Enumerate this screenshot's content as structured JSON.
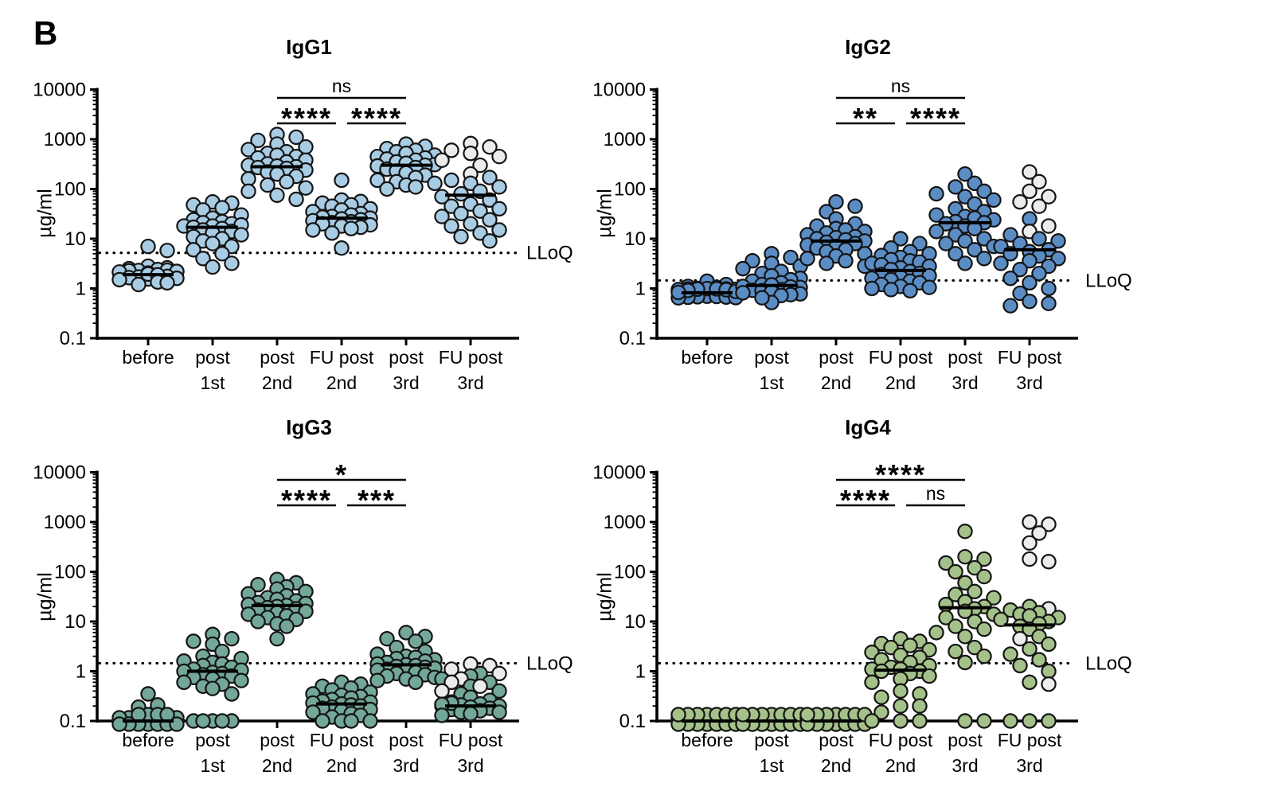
{
  "figure_label": "B",
  "lloq_label": "LLoQ",
  "ylabel": "µg/ml",
  "y_ticks": [
    "10000",
    "1000",
    "100",
    "10",
    "1",
    "0.1"
  ],
  "x_categories": [
    [
      "before",
      ""
    ],
    [
      "post",
      "1st"
    ],
    [
      "post",
      "2nd"
    ],
    [
      "FU post",
      "2nd"
    ],
    [
      "post",
      "3rd"
    ],
    [
      "FU post",
      "3rd"
    ]
  ],
  "colors": {
    "igg1": "#a8cce3",
    "igg2": "#5b8dc5",
    "igg3": "#73a79a",
    "igg4": "#a4c189",
    "open": "#ececec",
    "ink": "#000000"
  },
  "chart_data": [
    {
      "type": "scatter",
      "title": "IgG1",
      "ylabel": "µg/ml",
      "ylim": [
        0.1,
        10000
      ],
      "lloq": 5.2,
      "color_key": "igg1",
      "significance": [
        {
          "from": 2,
          "to": 4,
          "label": "ns",
          "row": 0
        },
        {
          "from": 2,
          "to": 3,
          "label": "****",
          "row": 1
        },
        {
          "from": 3,
          "to": 4,
          "label": "****",
          "row": 1
        }
      ],
      "groups": [
        {
          "category": "before",
          "median": 1.9,
          "values": [
            1.2,
            1.3,
            1.35,
            1.4,
            1.45,
            1.5,
            1.55,
            1.6,
            1.65,
            1.7,
            1.75,
            1.8,
            1.85,
            1.9,
            1.95,
            2.0,
            2.05,
            2.1,
            2.2,
            2.3,
            2.4,
            2.5,
            2.6,
            2.8,
            5.8,
            7.0
          ],
          "open_values": []
        },
        {
          "category": "post 1st",
          "median": 17,
          "values": [
            2.7,
            3.2,
            4,
            5,
            6,
            7,
            8,
            9,
            10,
            11,
            12,
            13,
            14,
            15,
            16,
            17,
            18,
            18,
            19,
            20,
            21,
            22,
            24,
            26,
            30,
            38,
            42,
            48,
            52,
            55
          ],
          "open_values": []
        },
        {
          "category": "post 2nd",
          "median": 280,
          "values": [
            62,
            75,
            90,
            105,
            120,
            140,
            160,
            180,
            200,
            220,
            240,
            260,
            270,
            280,
            290,
            300,
            320,
            350,
            380,
            420,
            450,
            480,
            520,
            560,
            620,
            700,
            800,
            950,
            1100,
            1250
          ],
          "open_values": []
        },
        {
          "category": "FU post 2nd",
          "median": 26,
          "values": [
            6.5,
            13,
            15,
            16,
            17,
            18,
            19,
            20,
            21,
            22,
            23,
            24,
            25,
            26,
            27,
            28,
            30,
            32,
            35,
            38,
            40,
            45,
            48,
            52,
            56,
            60,
            150
          ],
          "open_values": []
        },
        {
          "category": "post 3rd",
          "median": 300,
          "values": [
            100,
            110,
            120,
            130,
            140,
            150,
            170,
            190,
            210,
            230,
            250,
            270,
            290,
            300,
            310,
            330,
            350,
            380,
            400,
            420,
            450,
            480,
            520,
            560,
            600,
            650,
            720,
            800
          ],
          "open_values": []
        },
        {
          "category": "FU post 3rd",
          "median": 75,
          "values": [
            9,
            11,
            13,
            15,
            18,
            20,
            24,
            28,
            32,
            36,
            40,
            45,
            50,
            60,
            70,
            80,
            90,
            110,
            130,
            150,
            170
          ],
          "open_values": [
            200,
            300,
            380,
            450,
            520,
            600,
            700,
            820
          ]
        }
      ]
    },
    {
      "type": "scatter",
      "title": "IgG2",
      "ylabel": "µg/ml",
      "ylim": [
        0.1,
        10000
      ],
      "lloq": 1.45,
      "color_key": "igg2",
      "significance": [
        {
          "from": 2,
          "to": 4,
          "label": "ns",
          "row": 0
        },
        {
          "from": 2,
          "to": 3,
          "label": "**",
          "row": 1
        },
        {
          "from": 3,
          "to": 4,
          "label": "****",
          "row": 1
        }
      ],
      "groups": [
        {
          "category": "before",
          "median": 0.82,
          "values": [
            0.62,
            0.65,
            0.68,
            0.7,
            0.72,
            0.73,
            0.74,
            0.75,
            0.76,
            0.77,
            0.78,
            0.79,
            0.8,
            0.81,
            0.82,
            0.83,
            0.84,
            0.85,
            0.86,
            0.88,
            0.9,
            0.92,
            0.95,
            1.0,
            1.05,
            1.1,
            1.2,
            1.4
          ],
          "open_values": []
        },
        {
          "category": "post 1st",
          "median": 1.15,
          "values": [
            0.65,
            0.7,
            0.72,
            0.75,
            0.78,
            0.8,
            0.82,
            0.85,
            0.88,
            0.9,
            0.92,
            0.95,
            1.0,
            1.05,
            1.1,
            1.15,
            1.2,
            1.3,
            1.4,
            1.5,
            1.6,
            1.8,
            2.0,
            2.2,
            2.5,
            2.8,
            3.2,
            3.6,
            4.2,
            5.0
          ],
          "open_values": []
        },
        {
          "category": "post 2nd",
          "median": 9,
          "values": [
            2.8,
            3.2,
            3.6,
            4.0,
            4.5,
            5.0,
            5.5,
            6.0,
            6.5,
            7.0,
            7.5,
            8.0,
            8.5,
            9.0,
            9.5,
            10,
            10.5,
            11,
            12,
            13,
            14,
            15,
            16,
            18,
            20,
            25,
            35,
            45,
            55
          ],
          "open_values": []
        },
        {
          "category": "FU post 2nd",
          "median": 2.3,
          "values": [
            0.9,
            0.95,
            1.0,
            1.05,
            1.1,
            1.2,
            1.3,
            1.4,
            1.5,
            1.6,
            1.7,
            1.8,
            1.9,
            2.0,
            2.2,
            2.4,
            2.6,
            2.8,
            3.0,
            3.2,
            3.4,
            3.6,
            3.8,
            4.2,
            4.6,
            5.0,
            5.5,
            6.5,
            8.0,
            10
          ],
          "open_values": []
        },
        {
          "category": "post 3rd",
          "median": 21,
          "values": [
            3.2,
            4,
            5,
            6,
            7,
            8,
            9,
            10,
            12,
            14,
            16,
            18,
            20,
            21,
            22,
            24,
            26,
            28,
            30,
            35,
            40,
            50,
            60,
            70,
            80,
            90,
            110,
            130,
            200
          ],
          "open_values": []
        },
        {
          "category": "FU post 3rd",
          "median": 6,
          "values": [
            0.45,
            0.5,
            0.55,
            0.8,
            1.0,
            1.3,
            1.6,
            2.0,
            2.4,
            2.8,
            3.2,
            3.6,
            4.0,
            4.5,
            5.0,
            5.5,
            6.0,
            7.0,
            8.0,
            9.0,
            10,
            12,
            25
          ],
          "open_values": [
            14,
            18,
            45,
            55,
            70,
            90,
            140,
            220
          ]
        }
      ]
    },
    {
      "type": "scatter",
      "title": "IgG3",
      "ylabel": "µg/ml",
      "ylim": [
        0.1,
        10000
      ],
      "lloq": 1.45,
      "color_key": "igg3",
      "significance": [
        {
          "from": 2,
          "to": 4,
          "label": "*",
          "row": 0
        },
        {
          "from": 2,
          "to": 3,
          "label": "****",
          "row": 1
        },
        {
          "from": 3,
          "to": 4,
          "label": "***",
          "row": 1
        }
      ],
      "groups": [
        {
          "category": "before",
          "median": 0.1,
          "values": [
            0.1,
            0.1,
            0.1,
            0.1,
            0.1,
            0.1,
            0.1,
            0.1,
            0.1,
            0.1,
            0.1,
            0.1,
            0.1,
            0.1,
            0.1,
            0.1,
            0.1,
            0.1,
            0.1,
            0.1,
            0.1,
            0.1,
            0.19,
            0.21,
            0.35
          ],
          "open_values": []
        },
        {
          "category": "post 1st",
          "median": 1.0,
          "values": [
            0.1,
            0.1,
            0.1,
            0.1,
            0.1,
            0.35,
            0.45,
            0.5,
            0.55,
            0.6,
            0.65,
            0.7,
            0.75,
            0.8,
            0.85,
            0.9,
            0.95,
            1.0,
            1.05,
            1.1,
            1.2,
            1.3,
            1.4,
            1.5,
            1.6,
            1.8,
            2.0,
            2.5,
            3.5,
            4.0,
            4.5,
            5.5
          ],
          "open_values": []
        },
        {
          "category": "post 2nd",
          "median": 21,
          "values": [
            4.5,
            8,
            9,
            10,
            11,
            12,
            13,
            14,
            15,
            16,
            17,
            18,
            19,
            20,
            21,
            22,
            23,
            24,
            26,
            28,
            30,
            33,
            36,
            40,
            45,
            50,
            55,
            60,
            70
          ],
          "open_values": []
        },
        {
          "category": "FU post 2nd",
          "median": 0.22,
          "values": [
            0.1,
            0.1,
            0.1,
            0.1,
            0.12,
            0.13,
            0.14,
            0.15,
            0.16,
            0.17,
            0.18,
            0.19,
            0.2,
            0.21,
            0.22,
            0.23,
            0.24,
            0.25,
            0.27,
            0.29,
            0.31,
            0.33,
            0.35,
            0.38,
            0.42,
            0.46,
            0.5,
            0.55,
            0.6
          ],
          "open_values": []
        },
        {
          "category": "post 3rd",
          "median": 1.35,
          "values": [
            0.6,
            0.65,
            0.7,
            0.75,
            0.8,
            0.85,
            0.9,
            0.95,
            1.0,
            1.05,
            1.1,
            1.15,
            1.2,
            1.25,
            1.3,
            1.35,
            1.4,
            1.5,
            1.6,
            1.7,
            1.8,
            1.9,
            2.0,
            2.2,
            2.5,
            3.0,
            4.0,
            4.5,
            5.0,
            6.0
          ],
          "open_values": []
        },
        {
          "category": "FU post 3rd",
          "median": 0.2,
          "values": [
            0.13,
            0.14,
            0.15,
            0.15,
            0.16,
            0.16,
            0.17,
            0.17,
            0.18,
            0.19,
            0.2,
            0.2,
            0.21,
            0.22,
            0.24,
            0.26,
            0.3,
            0.35,
            0.4,
            0.5,
            0.6,
            0.7,
            0.8,
            0.9
          ],
          "open_values": [
            0.4,
            0.5,
            0.6,
            0.7,
            0.9,
            1.1,
            1.3,
            1.4
          ]
        }
      ]
    },
    {
      "type": "scatter",
      "title": "IgG4",
      "ylabel": "µg/ml",
      "ylim": [
        0.1,
        10000
      ],
      "lloq": 1.45,
      "color_key": "igg4",
      "significance": [
        {
          "from": 2,
          "to": 4,
          "label": "****",
          "row": 0
        },
        {
          "from": 2,
          "to": 3,
          "label": "****",
          "row": 1
        },
        {
          "from": 3,
          "to": 4,
          "label": "ns",
          "row": 1
        }
      ],
      "groups": [
        {
          "category": "before",
          "median": 0.1,
          "values": [
            0.1,
            0.1,
            0.1,
            0.1,
            0.1,
            0.1,
            0.1,
            0.1,
            0.1,
            0.1,
            0.1,
            0.1,
            0.1,
            0.1,
            0.1,
            0.1,
            0.1,
            0.1,
            0.1,
            0.1,
            0.1,
            0.1,
            0.1,
            0.1,
            0.1,
            0.1,
            0.1,
            0.1
          ],
          "open_values": []
        },
        {
          "category": "post 1st",
          "median": 0.1,
          "values": [
            0.1,
            0.1,
            0.1,
            0.1,
            0.1,
            0.1,
            0.1,
            0.1,
            0.1,
            0.1,
            0.1,
            0.1,
            0.1,
            0.1,
            0.1,
            0.1,
            0.1,
            0.1,
            0.1,
            0.1,
            0.1,
            0.1,
            0.1,
            0.1,
            0.1,
            0.1,
            0.1,
            0.1
          ],
          "open_values": []
        },
        {
          "category": "post 2nd",
          "median": 0.1,
          "values": [
            0.1,
            0.1,
            0.1,
            0.1,
            0.1,
            0.1,
            0.1,
            0.1,
            0.1,
            0.1,
            0.1,
            0.1,
            0.1,
            0.1,
            0.1,
            0.1,
            0.1,
            0.1,
            0.1,
            0.1,
            0.1,
            0.1,
            0.1,
            0.1,
            0.1,
            0.1,
            0.1,
            0.1
          ],
          "open_values": []
        },
        {
          "category": "FU post 2nd",
          "median": 1.05,
          "values": [
            0.1,
            0.1,
            0.1,
            0.15,
            0.2,
            0.2,
            0.3,
            0.35,
            0.4,
            0.6,
            0.7,
            0.8,
            0.9,
            1.0,
            1.0,
            1.1,
            1.1,
            1.2,
            1.3,
            1.5,
            1.7,
            1.9,
            2.1,
            2.4,
            2.7,
            3.0,
            3.3,
            3.6,
            4.0,
            4.5
          ],
          "open_values": []
        },
        {
          "category": "post 3rd",
          "median": 19,
          "values": [
            0.1,
            0.1,
            1.5,
            2.0,
            2.5,
            3.0,
            5,
            6,
            7,
            8,
            10,
            12,
            14,
            16,
            18,
            20,
            22,
            25,
            30,
            35,
            40,
            60,
            80,
            100,
            120,
            150,
            180,
            200,
            650
          ],
          "open_values": []
        },
        {
          "category": "FU post 3rd",
          "median": 8.5,
          "values": [
            0.1,
            0.1,
            0.1,
            0.6,
            1.0,
            1.3,
            1.7,
            2.2,
            2.8,
            3.5,
            5,
            7,
            8,
            9,
            10,
            11,
            12,
            13,
            14,
            15,
            17,
            20
          ],
          "open_values": [
            0.55,
            4.5,
            18,
            160,
            180,
            380,
            600,
            900,
            1000
          ]
        }
      ]
    }
  ]
}
